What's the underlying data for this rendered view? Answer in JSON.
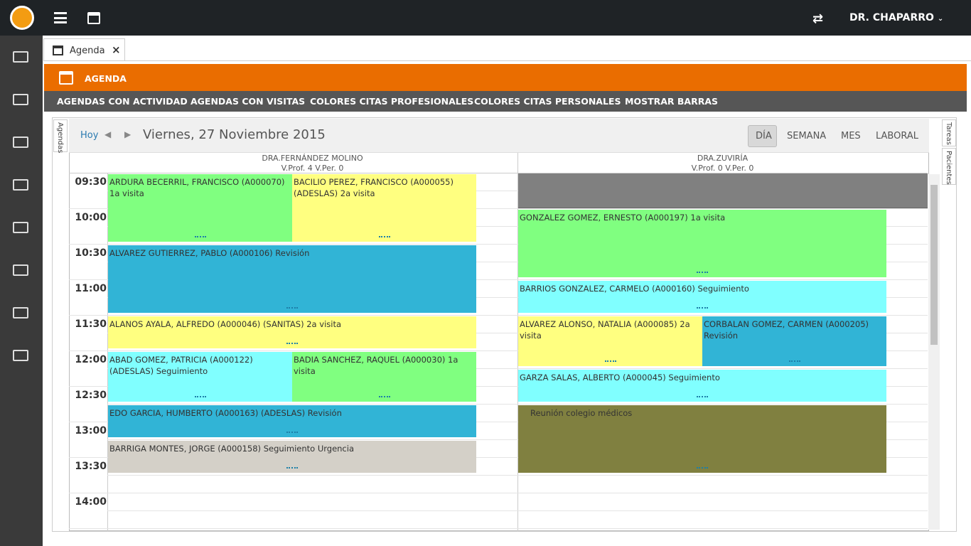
{
  "topbar": {
    "user": "DR. CHAPARRO"
  },
  "tab": {
    "label": "Agenda",
    "close": "×"
  },
  "section": {
    "title": "AGENDA"
  },
  "menu": [
    "AGENDAS CON ACTIVIDAD",
    "AGENDAS CON VISITAS",
    "COLORES CITAS PROFESIONALES",
    "COLORES CITAS PERSONALES",
    "MOSTRAR BARRAS"
  ],
  "side_tabs": {
    "left": "Agendas",
    "right": [
      "Tareas",
      "Pacientes"
    ]
  },
  "calendar": {
    "today": "Hoy",
    "date": "Viernes, 27 Noviembre 2015",
    "views": [
      "DÍA",
      "SEMANA",
      "MES",
      "LABORAL"
    ],
    "columns": [
      {
        "name": "DRA.FERNÁNDEZ MOLINO",
        "sub": "V.Prof. 4 V.Per. 0"
      },
      {
        "name": "DRA.ZUVIRÍA",
        "sub": "V.Prof. 0 V.Per. 0"
      }
    ],
    "times": [
      "09:30",
      "10:00",
      "10:30",
      "11:00",
      "11:30",
      "12:00",
      "12:30",
      "13:00",
      "13:30",
      "14:00"
    ],
    "appointments": [
      {
        "text": "ARDURA BECERRIL, FRANCISCO (A000070) 1a visita",
        "color": "#80ff80"
      },
      {
        "text": "BACILIO PEREZ, FRANCISCO (A000055) (ADESLAS) 2a visita",
        "color": "#ffff80"
      },
      {
        "text": "ALVAREZ GUTIERREZ, PABLO (A000106) Revisión",
        "color": "#31b4d6"
      },
      {
        "text": "ALANOS AYALA, ALFREDO (A000046) (SANITAS) 2a visita",
        "color": "#ffff80"
      },
      {
        "text": "ABAD GOMEZ, PATRICIA (A000122) (ADESLAS) Seguimiento",
        "color": "#80ffff"
      },
      {
        "text": "BADIA SANCHEZ, RAQUEL (A000030) 1a visita",
        "color": "#80ff80"
      },
      {
        "text": "EDO GARCIA, HUMBERTO (A000163) (ADESLAS) Revisión",
        "color": "#31b4d6"
      },
      {
        "text": "BARRIGA MONTES, JORGE (A000158) Seguimiento Urgencia",
        "color": "#d4d0c8"
      },
      {
        "text": "GONZALEZ GOMEZ, ERNESTO (A000197) 1a visita",
        "color": "#80ff80"
      },
      {
        "text": "BARRIOS GONZALEZ, CARMELO (A000160) Seguimiento",
        "color": "#80ffff"
      },
      {
        "text": "ALVAREZ ALONSO, NATALIA (A000085) 2a visita",
        "color": "#ffff80"
      },
      {
        "text": "CORBALAN GOMEZ, CARMEN (A000205) Revisión",
        "color": "#31b4d6"
      },
      {
        "text": "GARZA SALAS, ALBERTO (A000045) Seguimiento",
        "color": "#80ffff"
      },
      {
        "text": "Reunión colegio médicos",
        "color": "#808040"
      }
    ]
  }
}
